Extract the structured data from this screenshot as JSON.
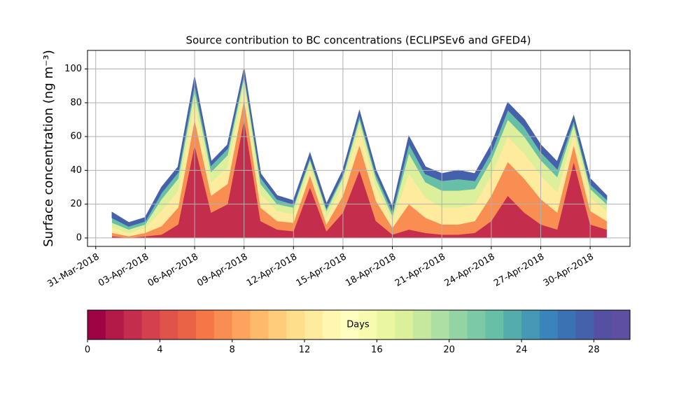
{
  "chart_data": [
    {
      "type": "stacked_area",
      "title": "Source contribution to BC concentrations (ECLIPSEv6 and GFED4)",
      "ylabel": "Surface concentration (ng m⁻³)",
      "x": [
        "2018-04-01",
        "2018-04-02",
        "2018-04-03",
        "2018-04-04",
        "2018-04-05",
        "2018-04-06",
        "2018-04-07",
        "2018-04-08",
        "2018-04-09",
        "2018-04-10",
        "2018-04-11",
        "2018-04-12",
        "2018-04-13",
        "2018-04-14",
        "2018-04-15",
        "2018-04-16",
        "2018-04-17",
        "2018-04-18",
        "2018-04-19",
        "2018-04-20",
        "2018-04-21",
        "2018-04-22",
        "2018-04-23",
        "2018-04-24",
        "2018-04-25",
        "2018-04-26",
        "2018-04-27",
        "2018-04-28",
        "2018-04-29",
        "2018-04-30",
        "2018-05-01"
      ],
      "series": [
        {
          "color": "#c42d4b",
          "values": [
            1,
            0,
            1,
            2,
            8,
            55,
            15,
            20,
            70,
            10,
            5,
            4,
            30,
            4,
            15,
            40,
            10,
            2,
            5,
            3,
            2,
            2,
            3,
            10,
            25,
            15,
            8,
            5,
            45,
            8,
            5
          ]
        },
        {
          "color": "#f98e52",
          "values": [
            2,
            1,
            2,
            5,
            10,
            15,
            10,
            12,
            12,
            8,
            5,
            5,
            7,
            4,
            10,
            15,
            12,
            4,
            15,
            9,
            6,
            6,
            7,
            15,
            20,
            20,
            15,
            10,
            10,
            8,
            5
          ]
        },
        {
          "color": "#feeb9d",
          "values": [
            3,
            2,
            3,
            9,
            10,
            10,
            8,
            10,
            8,
            8,
            6,
            5,
            5,
            4,
            7,
            10,
            8,
            4,
            18,
            12,
            10,
            10,
            10,
            12,
            15,
            15,
            14,
            12,
            7,
            8,
            6
          ]
        },
        {
          "color": "#dcf09b",
          "values": [
            3,
            2,
            2,
            7,
            7,
            7,
            6,
            7,
            5,
            6,
            4,
            4,
            4,
            4,
            4,
            5,
            5,
            3,
            12,
            9,
            10,
            10,
            9,
            9,
            10,
            10,
            9,
            9,
            5,
            5,
            4
          ]
        },
        {
          "color": "#66bfa6",
          "values": [
            3,
            2,
            2,
            4,
            4,
            5,
            4,
            4,
            3,
            4,
            3,
            2,
            2,
            2,
            2,
            3,
            3,
            3,
            6,
            5,
            6,
            7,
            5,
            5,
            6,
            6,
            5,
            5,
            3,
            3,
            3
          ]
        },
        {
          "color": "#4661ab",
          "values": [
            3,
            2,
            2,
            3,
            3,
            3,
            2,
            2,
            2,
            2,
            2,
            2,
            2,
            2,
            2,
            2,
            2,
            2,
            4,
            4,
            4,
            5,
            4,
            4,
            4,
            4,
            4,
            4,
            2,
            3,
            2
          ]
        }
      ],
      "xlim": [
        "2018-03-30T12:00",
        "2018-05-02T10:00"
      ],
      "xticks": [
        {
          "value": "2018-03-31",
          "label": "31-Mar-2018"
        },
        {
          "value": "2018-04-03",
          "label": "03-Apr-2018"
        },
        {
          "value": "2018-04-06",
          "label": "06-Apr-2018"
        },
        {
          "value": "2018-04-09",
          "label": "09-Apr-2018"
        },
        {
          "value": "2018-04-12",
          "label": "12-Apr-2018"
        },
        {
          "value": "2018-04-15",
          "label": "15-Apr-2018"
        },
        {
          "value": "2018-04-18",
          "label": "18-Apr-2018"
        },
        {
          "value": "2018-04-21",
          "label": "21-Apr-2018"
        },
        {
          "value": "2018-04-24",
          "label": "24-Apr-2018"
        },
        {
          "value": "2018-04-27",
          "label": "27-Apr-2018"
        },
        {
          "value": "2018-04-30",
          "label": "30-Apr-2018"
        }
      ],
      "ylim": [
        -5,
        111
      ],
      "yticks": [
        0,
        20,
        40,
        60,
        80,
        100
      ],
      "grid": true
    },
    {
      "type": "colorbar",
      "label": "Days",
      "xlim": [
        0,
        30
      ],
      "xticks": [
        0,
        4,
        8,
        12,
        16,
        20,
        24,
        28
      ],
      "colors": [
        "#a00343",
        "#b31a47",
        "#c42d4b",
        "#d5404e",
        "#e0534a",
        "#eb6346",
        "#f57748",
        "#f98e52",
        "#fca45e",
        "#fdba6b",
        "#fecd7b",
        "#fede8b",
        "#feeb9d",
        "#fff7b1",
        "#fefebe",
        "#f6fbb0",
        "#ebf7a0",
        "#dcf09b",
        "#c5e79e",
        "#addea2",
        "#94d4a4",
        "#7bcaa5",
        "#66bfa6",
        "#55acad",
        "#4698b6",
        "#3a84bb",
        "#3b72b3",
        "#4661ab",
        "#5550a2",
        "#5e4fa2"
      ]
    }
  ]
}
